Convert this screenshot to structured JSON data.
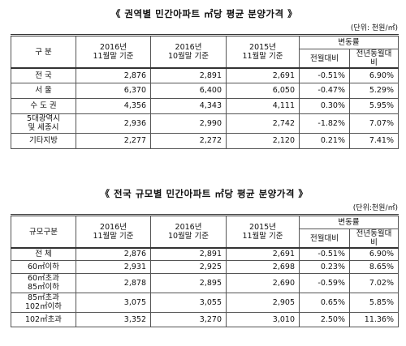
{
  "tables": [
    {
      "title": "《 권역별 민간아파트 ㎡당 평균 분양가격 》",
      "unit": "(단위: 천원/㎡)",
      "header": {
        "label": "구  분",
        "cols": [
          "2016년\n11월말 기준",
          "2016년\n10월말 기준",
          "2015년\n11월말 기준"
        ],
        "group": "변동률",
        "subcols": [
          "전월대비",
          "전년동월대비"
        ]
      },
      "rows": [
        [
          "전  국",
          "2,876",
          "2,891",
          "2,691",
          "-0.51%",
          "6.90%"
        ],
        [
          "서  울",
          "6,370",
          "6,400",
          "6,050",
          "-0.47%",
          "5.29%"
        ],
        [
          "수 도 권",
          "4,356",
          "4,343",
          "4,111",
          "0.30%",
          "5.95%"
        ],
        [
          "5대광역시\n및 세종시",
          "2,936",
          "2,990",
          "2,742",
          "-1.82%",
          "7.07%"
        ],
        [
          "기타지방",
          "2,277",
          "2,272",
          "2,120",
          "0.21%",
          "7.41%"
        ]
      ]
    },
    {
      "title": "《 전국 규모별 민간아파트 ㎡당 평균 분양가격 》",
      "unit": "(단위:천원/㎡)",
      "header": {
        "label": "규모구분",
        "cols": [
          "2016년\n11월말 기준",
          "2016년\n10월말 기준",
          "2015년\n11월말 기준"
        ],
        "group": "변동률",
        "subcols": [
          "전월대비",
          "전년동월대비"
        ]
      },
      "rows": [
        [
          "전  체",
          "2,876",
          "2,891",
          "2,691",
          "-0.51%",
          "6.90%"
        ],
        [
          "60㎡이하",
          "2,931",
          "2,925",
          "2,698",
          "0.23%",
          "8.65%"
        ],
        [
          "60㎡초과\n85㎡이하",
          "2,878",
          "2,895",
          "2,690",
          "-0.59%",
          "7.02%"
        ],
        [
          "85㎡초과\n102㎡이하",
          "3,075",
          "3,055",
          "2,905",
          "0.65%",
          "5.85%"
        ],
        [
          "102㎡초과",
          "3,352",
          "3,270",
          "3,010",
          "2.50%",
          "11.36%"
        ]
      ]
    }
  ]
}
